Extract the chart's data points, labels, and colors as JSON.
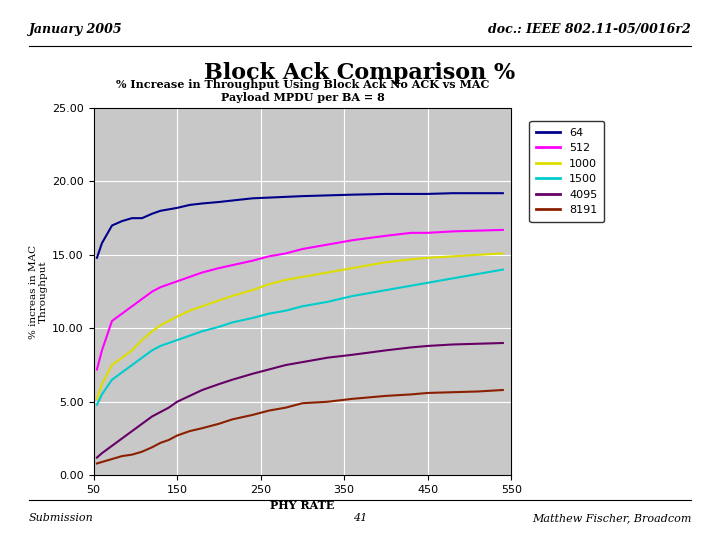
{
  "title_main": "Block Ack Comparison %",
  "header_left": "January 2005",
  "header_right": "doc.: IEEE 802.11-05/0016r2",
  "footer_left": "Submission",
  "footer_center": "41",
  "footer_right": "Matthew Fischer, Broadcom",
  "chart_title_line1": "% Increase in Throughput Using Block Ack No ACK vs MAC",
  "chart_title_line2": "Payload MPDU per BA = 8",
  "xlabel": "PHY RATE",
  "ylabel": "% increas in MAC\nThroughput",
  "xlim": [
    50,
    550
  ],
  "ylim": [
    0.0,
    25.0
  ],
  "xticks": [
    50,
    150,
    250,
    350,
    450,
    550
  ],
  "yticks": [
    0.0,
    5.0,
    10.0,
    15.0,
    20.0,
    25.0
  ],
  "x_values": [
    54,
    60,
    72,
    84,
    96,
    108,
    120,
    130,
    140,
    150,
    165,
    180,
    200,
    216,
    240,
    260,
    280,
    300,
    330,
    360,
    400,
    430,
    450,
    480,
    510,
    540
  ],
  "series": {
    "64": [
      14.8,
      15.8,
      17.0,
      17.3,
      17.5,
      17.5,
      17.8,
      18.0,
      18.1,
      18.2,
      18.4,
      18.5,
      18.6,
      18.7,
      18.85,
      18.9,
      18.95,
      19.0,
      19.05,
      19.1,
      19.15,
      19.15,
      19.15,
      19.2,
      19.2,
      19.2
    ],
    "512": [
      7.2,
      8.5,
      10.5,
      11.0,
      11.5,
      12.0,
      12.5,
      12.8,
      13.0,
      13.2,
      13.5,
      13.8,
      14.1,
      14.3,
      14.6,
      14.9,
      15.1,
      15.4,
      15.7,
      16.0,
      16.3,
      16.5,
      16.5,
      16.6,
      16.65,
      16.7
    ],
    "1000": [
      5.2,
      6.2,
      7.5,
      8.0,
      8.5,
      9.2,
      9.8,
      10.2,
      10.5,
      10.8,
      11.2,
      11.5,
      11.9,
      12.2,
      12.6,
      13.0,
      13.3,
      13.5,
      13.8,
      14.1,
      14.5,
      14.7,
      14.8,
      14.9,
      15.0,
      15.1
    ],
    "1500": [
      4.8,
      5.5,
      6.5,
      7.0,
      7.5,
      8.0,
      8.5,
      8.8,
      9.0,
      9.2,
      9.5,
      9.8,
      10.1,
      10.4,
      10.7,
      11.0,
      11.2,
      11.5,
      11.8,
      12.2,
      12.6,
      12.9,
      13.1,
      13.4,
      13.7,
      14.0
    ],
    "4095": [
      1.2,
      1.5,
      2.0,
      2.5,
      3.0,
      3.5,
      4.0,
      4.3,
      4.6,
      5.0,
      5.4,
      5.8,
      6.2,
      6.5,
      6.9,
      7.2,
      7.5,
      7.7,
      8.0,
      8.2,
      8.5,
      8.7,
      8.8,
      8.9,
      8.95,
      9.0
    ],
    "8191": [
      0.8,
      0.9,
      1.1,
      1.3,
      1.4,
      1.6,
      1.9,
      2.2,
      2.4,
      2.7,
      3.0,
      3.2,
      3.5,
      3.8,
      4.1,
      4.4,
      4.6,
      4.9,
      5.0,
      5.2,
      5.4,
      5.5,
      5.6,
      5.65,
      5.7,
      5.8
    ]
  },
  "colors": {
    "64": "#00008B",
    "512": "#FF00FF",
    "1000": "#DDDD00",
    "1500": "#00CCCC",
    "4095": "#660066",
    "8191": "#8B2000"
  },
  "plot_bg": "#C8C8C8"
}
